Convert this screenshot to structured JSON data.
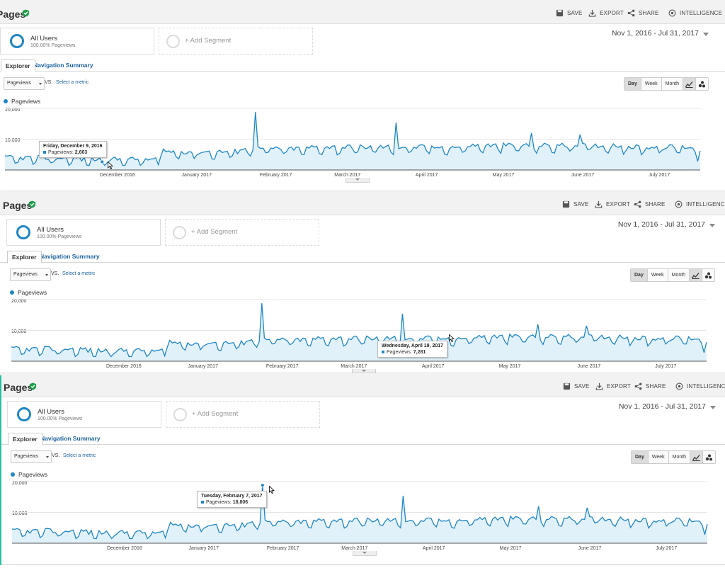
{
  "colors": {
    "accent": "#1f87c5",
    "area": "#e1f1fa",
    "link": "#1a5f9c",
    "verified": "#1e9e4c"
  },
  "header": {
    "title": "Pages",
    "verified_icon": "check-shield-icon",
    "save_label": "SAVE",
    "export_label": "EXPORT",
    "share_label": "SHARE",
    "intelligence_label": "INTELLIGENCE"
  },
  "segments": {
    "all_users_title": "All Users",
    "all_users_sub": "100.00% Pageviews",
    "add_segment_label": "+ Add Segment"
  },
  "date_range": "Nov 1, 2016 - Jul 31, 2017",
  "tabs": {
    "explorer": "Explorer",
    "navigation_summary": "Navigation Summary"
  },
  "metric": {
    "selected": "Pageviews",
    "vs": "VS.",
    "select_metric": "Select a metric"
  },
  "period": {
    "day": "Day",
    "week": "Week",
    "month": "Month",
    "selected": "Day"
  },
  "panels": [
    {
      "tooltip": {
        "date": "Friday, December 9, 2016",
        "metric": "Pageviews",
        "value": "2,663"
      }
    },
    {
      "tooltip": {
        "date": "Wednesday, April 19, 2017",
        "metric": "Pageviews",
        "value": "7,281"
      }
    },
    {
      "tooltip": {
        "date": "Tuesday, February 7, 2017",
        "metric": "Pageviews",
        "value": "18,806"
      }
    }
  ],
  "chart_data": {
    "type": "area",
    "legend": [
      "Pageviews"
    ],
    "series": [
      {
        "name": "Pageviews"
      }
    ],
    "y_ticks": [
      "20,000",
      "10,000"
    ],
    "ylim": [
      0,
      20000
    ],
    "x_tick_labels": [
      "December 2016",
      "January 2017",
      "February 2017",
      "March 2017",
      "April 2017",
      "May 2017",
      "June 2017",
      "July 2017"
    ],
    "x_range": [
      "2016-11-01",
      "2017-07-31"
    ],
    "highlighted_points": [
      {
        "date": "2016-12-09",
        "value": 2663
      },
      {
        "date": "2017-04-19",
        "value": 7281
      },
      {
        "date": "2017-02-07",
        "value": 18806
      }
    ],
    "approx_profile": {
      "Nov 2016": 3500,
      "Dec 2016": 3000,
      "Jan 2017": 5500,
      "Feb 2017": 6500,
      "Mar 2017": 7000,
      "Apr 2017": 7000,
      "May 2017": 7500,
      "Jun 2017": 7500,
      "Jul 2017": 7000
    },
    "notable_peaks": [
      {
        "date": "2017-02-07",
        "value": 18806
      },
      {
        "date": "2017-04-03",
        "value": 15400
      },
      {
        "date": "2017-05-26",
        "value": 12000
      },
      {
        "date": "2017-06-14",
        "value": 11500
      }
    ]
  }
}
